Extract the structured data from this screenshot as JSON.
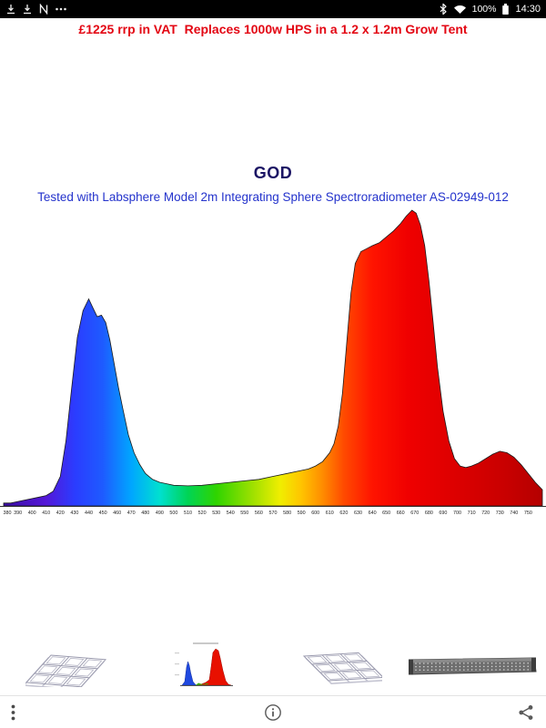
{
  "status_bar": {
    "time": "14:30",
    "battery_text": "100%",
    "left_icons": [
      "download-icon",
      "download-icon",
      "nfc-icon",
      "overflow-icon"
    ],
    "right_icons": [
      "bluetooth-icon",
      "wifi-icon",
      "battery-icon"
    ]
  },
  "banner": {
    "text": "£1225 rrp in VAT  Replaces 1000w HPS in a 1.2 x 1.2m Grow Tent",
    "color": "#e30613"
  },
  "chart_data": {
    "type": "area",
    "title": "GOD",
    "title_color": "#1b1464",
    "subtitle": "Tested with Labsphere Model 2m Integrating Sphere Spectroradiometer AS-02949-012",
    "subtitle_color": "#2433cc",
    "xlabel": "",
    "ylabel": "",
    "xlim": [
      380,
      760
    ],
    "ylim": [
      0,
      100
    ],
    "grid": false,
    "legend": false,
    "x_ticks": [
      380,
      390,
      400,
      410,
      420,
      430,
      440,
      450,
      460,
      470,
      480,
      490,
      500,
      510,
      520,
      530,
      540,
      550,
      560,
      570,
      580,
      590,
      600,
      610,
      620,
      630,
      640,
      650,
      660,
      670,
      680,
      690,
      700,
      710,
      720,
      730,
      740,
      750
    ],
    "x": [
      380,
      385,
      390,
      395,
      400,
      405,
      410,
      415,
      420,
      424,
      428,
      432,
      436,
      440,
      443,
      446,
      449,
      452,
      455,
      458,
      461,
      464,
      468,
      472,
      476,
      480,
      485,
      490,
      495,
      500,
      510,
      520,
      530,
      540,
      550,
      560,
      570,
      580,
      590,
      595,
      600,
      605,
      610,
      613,
      616,
      619,
      622,
      625,
      628,
      632,
      636,
      640,
      645,
      650,
      655,
      660,
      664,
      668,
      671,
      674,
      677,
      680,
      683,
      686,
      690,
      694,
      698,
      702,
      706,
      710,
      715,
      720,
      725,
      730,
      735,
      740,
      745,
      750,
      755,
      760
    ],
    "y": [
      1,
      1,
      1.5,
      2,
      2.5,
      3,
      3.5,
      5,
      10,
      22,
      40,
      57,
      66,
      70,
      67,
      64,
      64.5,
      62,
      56,
      48,
      40,
      33,
      24,
      18,
      14,
      11,
      9,
      8,
      7.5,
      7,
      6.8,
      7,
      7.5,
      8,
      8.5,
      9,
      10,
      11,
      12,
      12.5,
      13.5,
      15,
      18,
      21,
      27,
      38,
      55,
      72,
      82,
      86,
      87,
      88,
      89,
      91,
      93,
      95.5,
      98,
      100,
      99,
      95,
      88,
      76,
      62,
      47,
      32,
      22,
      16,
      13.5,
      13,
      13.5,
      14.5,
      16,
      17.5,
      18.5,
      18,
      16.5,
      14,
      11,
      8,
      5.5
    ],
    "gradient": [
      {
        "wl": 380,
        "color": "#3a0ca3"
      },
      {
        "wl": 410,
        "color": "#5418d8"
      },
      {
        "wl": 430,
        "color": "#2b3cff"
      },
      {
        "wl": 450,
        "color": "#1e5bff"
      },
      {
        "wl": 470,
        "color": "#00a6ff"
      },
      {
        "wl": 490,
        "color": "#00e0d0"
      },
      {
        "wl": 510,
        "color": "#00d455"
      },
      {
        "wl": 530,
        "color": "#2fd400"
      },
      {
        "wl": 555,
        "color": "#9be000"
      },
      {
        "wl": 575,
        "color": "#f0ee00"
      },
      {
        "wl": 590,
        "color": "#ffc400"
      },
      {
        "wl": 605,
        "color": "#ff8c00"
      },
      {
        "wl": 620,
        "color": "#ff4a00"
      },
      {
        "wl": 640,
        "color": "#ff1400"
      },
      {
        "wl": 665,
        "color": "#f00000"
      },
      {
        "wl": 700,
        "color": "#dc0000"
      },
      {
        "wl": 735,
        "color": "#c80000"
      },
      {
        "wl": 760,
        "color": "#b40000"
      }
    ]
  },
  "thumbnails": [
    {
      "name": "led-panel-drawing-1"
    },
    {
      "name": "spectrum-mini-chart"
    },
    {
      "name": "led-panel-drawing-2"
    },
    {
      "name": "led-bar-fixture"
    }
  ],
  "bottom_bar": {
    "icons": [
      "menu-dots-icon",
      "info-icon",
      "share-icon"
    ]
  }
}
